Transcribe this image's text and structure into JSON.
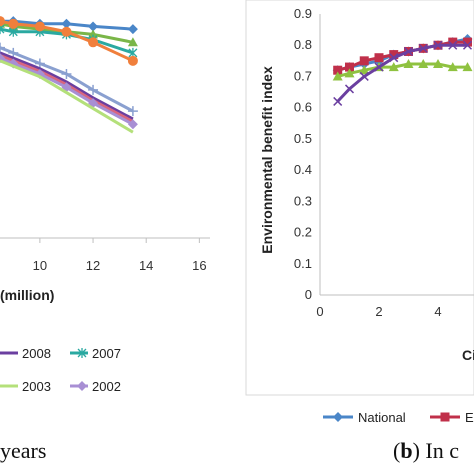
{
  "chart_data": [
    {
      "type": "line",
      "xlabel": "(million)",
      "ylabel": "",
      "x_ticks": [
        "10",
        "12",
        "14",
        "16"
      ],
      "xlim": [
        8.5,
        16.4
      ],
      "ylim": [
        0,
        0.9
      ],
      "series": [
        {
          "name": "",
          "color": "#4a86c8",
          "marker": "diamond",
          "x": [
            8.5,
            9,
            10,
            11,
            12,
            13.5
          ],
          "y": [
            0.82,
            0.82,
            0.81,
            0.81,
            0.8,
            0.79
          ]
        },
        {
          "name": "",
          "color": "#7ab648",
          "marker": "triangle",
          "x": [
            8.5,
            9,
            10,
            11,
            12,
            13.5
          ],
          "y": [
            0.81,
            0.8,
            0.79,
            0.78,
            0.77,
            0.74
          ]
        },
        {
          "name": "2007",
          "color": "#2aa9a1",
          "marker": "star",
          "x": [
            8.5,
            9,
            10,
            11,
            12,
            13.5
          ],
          "y": [
            0.79,
            0.78,
            0.78,
            0.77,
            0.75,
            0.7
          ]
        },
        {
          "name": "",
          "color": "#f07f3c",
          "marker": "circle",
          "x": [
            8.5,
            9,
            10,
            11,
            12,
            13.5
          ],
          "y": [
            0.82,
            0.81,
            0.8,
            0.78,
            0.74,
            0.67
          ]
        },
        {
          "name": "",
          "color": "#8aa0d0",
          "marker": "plus",
          "x": [
            8.5,
            9,
            10,
            11,
            12,
            13.5
          ],
          "y": [
            0.72,
            0.7,
            0.66,
            0.62,
            0.56,
            0.48
          ]
        },
        {
          "name": "2008",
          "color": "#6b3fa0",
          "marker": "none",
          "x": [
            8.5,
            9,
            10,
            11,
            12,
            13.5
          ],
          "y": [
            0.7,
            0.68,
            0.64,
            0.59,
            0.53,
            0.45
          ]
        },
        {
          "name": "",
          "color": "#d9667f",
          "marker": "none",
          "x": [
            8.5,
            9,
            10,
            11,
            12,
            13.5
          ],
          "y": [
            0.69,
            0.67,
            0.63,
            0.58,
            0.52,
            0.44
          ]
        },
        {
          "name": "2002",
          "color": "#a88fd4",
          "marker": "diamond",
          "x": [
            8.5,
            9,
            10,
            11,
            12,
            13.5
          ],
          "y": [
            0.68,
            0.66,
            0.62,
            0.57,
            0.51,
            0.43
          ]
        },
        {
          "name": "2003",
          "color": "#b4e07a",
          "marker": "none",
          "x": [
            8.5,
            9,
            10,
            11,
            12,
            13.5
          ],
          "y": [
            0.67,
            0.65,
            0.61,
            0.55,
            0.49,
            0.4
          ]
        }
      ],
      "legend": [
        {
          "label": "2008",
          "color": "#6b3fa0",
          "marker": "none"
        },
        {
          "label": "2007",
          "color": "#2aa9a1",
          "marker": "star"
        },
        {
          "label": "2003",
          "color": "#b4e07a",
          "marker": "none"
        },
        {
          "label": "2002",
          "color": "#a88fd4",
          "marker": "diamond"
        }
      ]
    },
    {
      "type": "line",
      "xlabel": "Ci",
      "ylabel": "Environmental benefit index",
      "y_ticks": [
        "0",
        "0.1",
        "0.2",
        "0.3",
        "0.4",
        "0.5",
        "0.6",
        "0.7",
        "0.8",
        "0.9"
      ],
      "x_ticks": [
        "0",
        "2",
        "4"
      ],
      "xlim": [
        0,
        5
      ],
      "ylim": [
        0,
        0.9
      ],
      "series": [
        {
          "name": "National",
          "color": "#4a86c8",
          "marker": "diamond",
          "x": [
            0.6,
            1,
            1.5,
            2,
            2.5,
            3,
            3.5,
            4,
            4.5,
            5
          ],
          "y": [
            0.72,
            0.73,
            0.74,
            0.75,
            0.77,
            0.78,
            0.79,
            0.8,
            0.81,
            0.82
          ]
        },
        {
          "name": "E",
          "color": "#c0304a",
          "marker": "square",
          "x": [
            0.6,
            1,
            1.5,
            2,
            2.5,
            3,
            3.5,
            4,
            4.5,
            5
          ],
          "y": [
            0.72,
            0.73,
            0.75,
            0.76,
            0.77,
            0.78,
            0.79,
            0.8,
            0.81,
            0.81
          ]
        },
        {
          "name": "",
          "color": "#8fc240",
          "marker": "triangle",
          "x": [
            0.6,
            1,
            1.5,
            2,
            2.5,
            3,
            3.5,
            4,
            4.5,
            5
          ],
          "y": [
            0.7,
            0.71,
            0.72,
            0.73,
            0.73,
            0.74,
            0.74,
            0.74,
            0.73,
            0.73
          ]
        },
        {
          "name": "",
          "color": "#6b3fa0",
          "marker": "cross",
          "x": [
            0.6,
            1,
            1.5,
            2,
            2.5,
            3,
            3.5,
            4,
            4.5,
            5
          ],
          "y": [
            0.62,
            0.66,
            0.7,
            0.73,
            0.76,
            0.78,
            0.79,
            0.8,
            0.8,
            0.8
          ]
        }
      ],
      "legend": [
        {
          "label": "National",
          "color": "#4a86c8",
          "marker": "diamond"
        },
        {
          "label": "E",
          "color": "#c0304a",
          "marker": "square"
        }
      ]
    }
  ],
  "captions": {
    "left": "years",
    "right_bold": "b",
    "right_text": ") In c"
  }
}
